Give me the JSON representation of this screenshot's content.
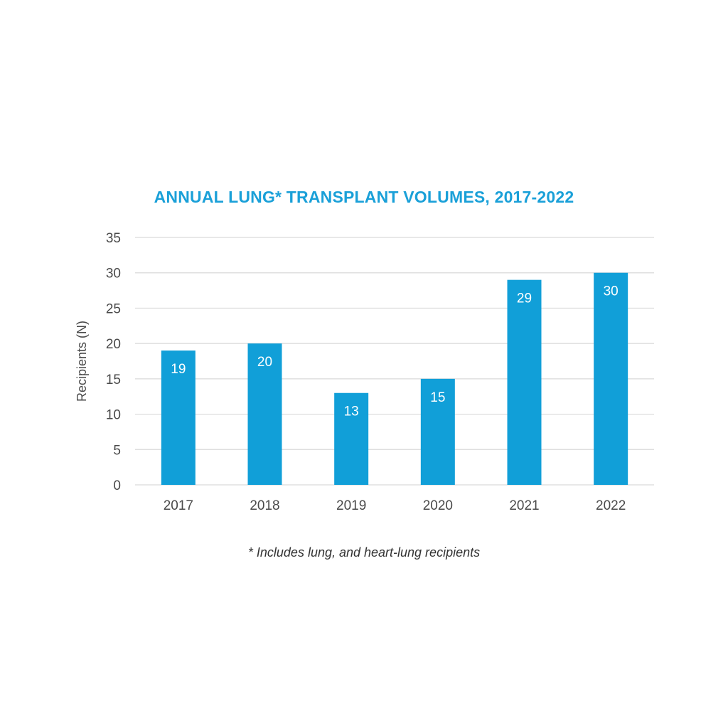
{
  "colors": {
    "title": "#1aa0d8",
    "bar": "#119fd8",
    "grid": "#d9d9d9",
    "axis_text": "#4a4a4a",
    "data_label": "#ffffff",
    "footnote": "#333333"
  },
  "chart_data": {
    "type": "bar",
    "title": "ANNUAL LUNG* TRANSPLANT VOLUMES, 2017-2022",
    "xlabel": "",
    "ylabel": "Recipients (N)",
    "categories": [
      "2017",
      "2018",
      "2019",
      "2020",
      "2021",
      "2022"
    ],
    "values": [
      19,
      20,
      13,
      15,
      29,
      30
    ],
    "data_labels": [
      "19",
      "20",
      "13",
      "15",
      "29",
      "30"
    ],
    "ylim": [
      0,
      35
    ],
    "yticks": [
      0,
      5,
      10,
      15,
      20,
      25,
      30,
      35
    ],
    "ytick_labels": [
      "0",
      "5",
      "10",
      "15",
      "20",
      "25",
      "30",
      "35"
    ],
    "grid": true,
    "legend": "none"
  },
  "footnote": "* Includes lung, and heart-lung recipients"
}
